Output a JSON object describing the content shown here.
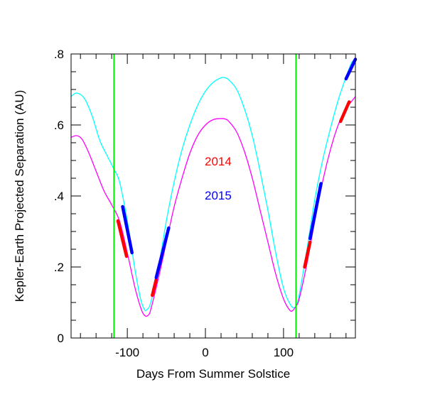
{
  "chart_data": {
    "type": "line",
    "xlabel": "Days From Summer Solstice",
    "ylabel": "Kepler-Earth Projected Separation (AU)",
    "xlim": [
      -172,
      192
    ],
    "ylim": [
      0,
      0.8
    ],
    "x_ticks": [
      -100,
      0,
      100
    ],
    "x_tick_labels": [
      "-100",
      "0",
      "100"
    ],
    "y_ticks": [
      0,
      0.2,
      0.4,
      0.6,
      0.8
    ],
    "y_tick_labels": [
      "0",
      ".2",
      ".4",
      ".6",
      ".8"
    ],
    "grid": false,
    "legend_position": "center",
    "annotations": [
      {
        "text": "2014",
        "color": "#ff0000"
      },
      {
        "text": "2015",
        "color": "#0000ff"
      }
    ],
    "vlines": [
      {
        "x": -117,
        "color": "#00ee00"
      },
      {
        "x": 116,
        "color": "#00ee00"
      }
    ],
    "series": [
      {
        "color": "#00ffff",
        "x": [
          -172,
          -165,
          -155,
          -145,
          -135,
          -125,
          -117,
          -110,
          -100,
          -90,
          -83,
          -78,
          -75,
          -70,
          -60,
          -50,
          -40,
          -30,
          -20,
          -10,
          0,
          10,
          20,
          25,
          30,
          40,
          50,
          60,
          70,
          80,
          90,
          100,
          110,
          116,
          120,
          130,
          140,
          150,
          160,
          170,
          180,
          187,
          192
        ],
        "y": [
          0.68,
          0.69,
          0.675,
          0.625,
          0.555,
          0.51,
          0.475,
          0.44,
          0.33,
          0.19,
          0.11,
          0.08,
          0.08,
          0.1,
          0.2,
          0.33,
          0.44,
          0.53,
          0.6,
          0.655,
          0.695,
          0.72,
          0.733,
          0.733,
          0.727,
          0.7,
          0.645,
          0.57,
          0.47,
          0.36,
          0.24,
          0.14,
          0.09,
          0.09,
          0.12,
          0.25,
          0.39,
          0.5,
          0.59,
          0.67,
          0.735,
          0.775,
          0.785
        ]
      },
      {
        "color": "#ff00ff",
        "x": [
          -172,
          -165,
          -158,
          -150,
          -140,
          -130,
          -120,
          -110,
          -100,
          -90,
          -82,
          -77,
          -73,
          -70,
          -60,
          -50,
          -40,
          -30,
          -20,
          -10,
          0,
          10,
          20,
          25,
          30,
          40,
          50,
          60,
          70,
          80,
          90,
          100,
          108,
          112,
          116,
          120,
          130,
          140,
          150,
          160,
          170,
          180,
          192
        ],
        "y": [
          0.565,
          0.57,
          0.56,
          0.525,
          0.47,
          0.415,
          0.375,
          0.33,
          0.24,
          0.14,
          0.08,
          0.062,
          0.065,
          0.08,
          0.17,
          0.27,
          0.37,
          0.45,
          0.52,
          0.57,
          0.6,
          0.615,
          0.618,
          0.617,
          0.61,
          0.58,
          0.525,
          0.45,
          0.36,
          0.27,
          0.18,
          0.11,
          0.078,
          0.078,
          0.09,
          0.11,
          0.21,
          0.33,
          0.44,
          0.53,
          0.6,
          0.645,
          0.68
        ]
      }
    ],
    "highlight_segments": [
      {
        "year": "2014",
        "color": "#ff0000",
        "x": [
          -112,
          -101
        ],
        "y": [
          0.33,
          0.23
        ]
      },
      {
        "year": "2014",
        "color": "#ff0000",
        "x": [
          -68,
          -63
        ],
        "y": [
          0.12,
          0.165
        ]
      },
      {
        "year": "2014",
        "color": "#ff0000",
        "x": [
          127,
          134
        ],
        "y": [
          0.2,
          0.27
        ]
      },
      {
        "year": "2014",
        "color": "#ff0000",
        "x": [
          173,
          184
        ],
        "y": [
          0.61,
          0.665
        ]
      },
      {
        "year": "2015",
        "color": "#0000ff",
        "x": [
          -106,
          -94
        ],
        "y": [
          0.37,
          0.24
        ]
      },
      {
        "year": "2015",
        "color": "#0000ff",
        "x": [
          -63,
          -47
        ],
        "y": [
          0.17,
          0.31
        ]
      },
      {
        "year": "2015",
        "color": "#0000ff",
        "x": [
          134,
          148
        ],
        "y": [
          0.28,
          0.435
        ]
      },
      {
        "year": "2015",
        "color": "#0000ff",
        "x": [
          180,
          192
        ],
        "y": [
          0.73,
          0.785
        ]
      }
    ]
  }
}
